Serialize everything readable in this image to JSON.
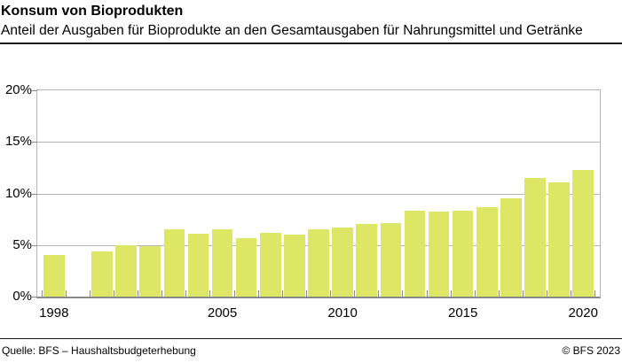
{
  "chart_data": {
    "type": "bar",
    "title": "Konsum von Bioprodukten",
    "subtitle": "Anteil der Ausgaben für Bioprodukte an den Gesamtausgaben für Nahrungsmittel und Getränke",
    "x": [
      1998,
      2000,
      2001,
      2002,
      2003,
      2004,
      2005,
      2006,
      2007,
      2008,
      2009,
      2010,
      2011,
      2012,
      2013,
      2014,
      2015,
      2016,
      2017,
      2018,
      2019,
      2020
    ],
    "values": [
      4.0,
      4.4,
      5.0,
      4.9,
      6.5,
      6.1,
      6.5,
      5.7,
      6.2,
      6.0,
      6.5,
      6.7,
      7.0,
      7.1,
      8.3,
      8.2,
      8.3,
      8.7,
      9.5,
      11.5,
      11.1,
      12.3
    ],
    "missing_years": [
      1999
    ],
    "unit": "%",
    "ylim": [
      0,
      20
    ],
    "yticks": [
      0,
      5,
      10,
      15,
      20
    ],
    "ytick_labels": [
      "0%",
      "5%",
      "10%",
      "15%",
      "20%"
    ],
    "xticks": [
      1998,
      2005,
      2010,
      2015,
      2020
    ],
    "xtick_labels": [
      "1998",
      "2005",
      "2010",
      "2015",
      "2020"
    ],
    "grid": true,
    "legend": "none",
    "bar_color": "#dde765",
    "grid_color": "#b4b4b4",
    "axis_color": "#8a8a8a"
  },
  "footer": {
    "source": "Quelle: BFS – Haushaltsbudgeterhebung",
    "copyright": "© BFS 2023"
  }
}
